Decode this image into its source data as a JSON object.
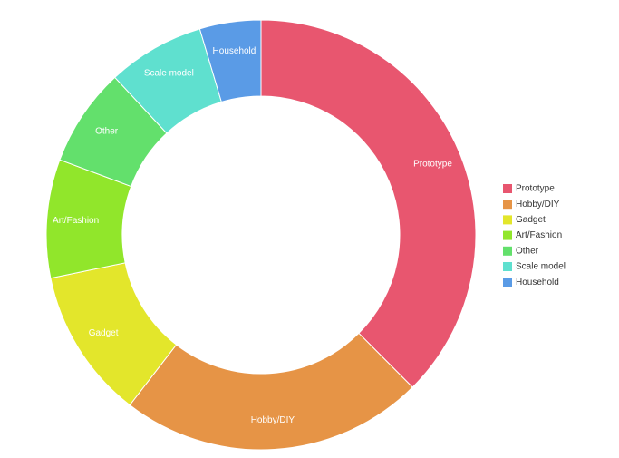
{
  "chart_data": {
    "type": "donut",
    "categories": [
      "Prototype",
      "Hobby/DIY",
      "Gadget",
      "Art/Fashion",
      "Other",
      "Scale model",
      "Household"
    ],
    "values": [
      37.5,
      22.9,
      11.3,
      8.9,
      7.4,
      7.3,
      4.6
    ],
    "colors": [
      "#e8566f",
      "#e69446",
      "#e3e62b",
      "#91e62b",
      "#63e06c",
      "#5fe0cf",
      "#5a9be6"
    ],
    "legend": "right"
  }
}
